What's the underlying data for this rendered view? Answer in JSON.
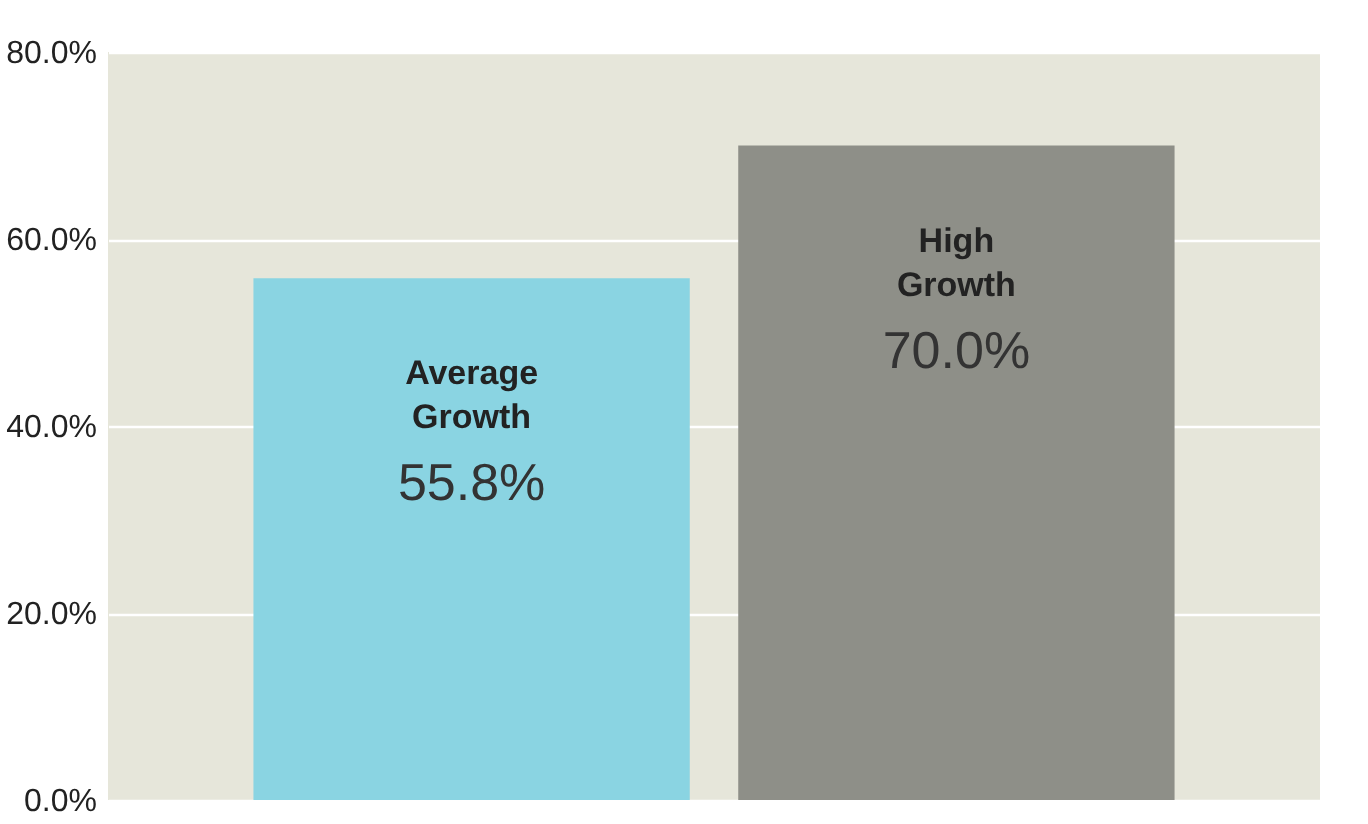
{
  "chart_data": {
    "type": "bar",
    "categories": [
      "Average Growth",
      "High Growth"
    ],
    "values": [
      55.8,
      70.0
    ],
    "colors": [
      "#8ad4e2",
      "#8e8f88"
    ],
    "value_labels": [
      "55.8%",
      "70.0%"
    ],
    "ylim": [
      0,
      80
    ],
    "yticks": [
      {
        "value": 0,
        "label": "0.0%"
      },
      {
        "value": 20,
        "label": "20.0%"
      },
      {
        "value": 40,
        "label": "40.0%"
      },
      {
        "value": 60,
        "label": "60.0%"
      },
      {
        "value": 80,
        "label": "80.0%"
      }
    ],
    "grid": "y",
    "tick_labels": "y"
  }
}
